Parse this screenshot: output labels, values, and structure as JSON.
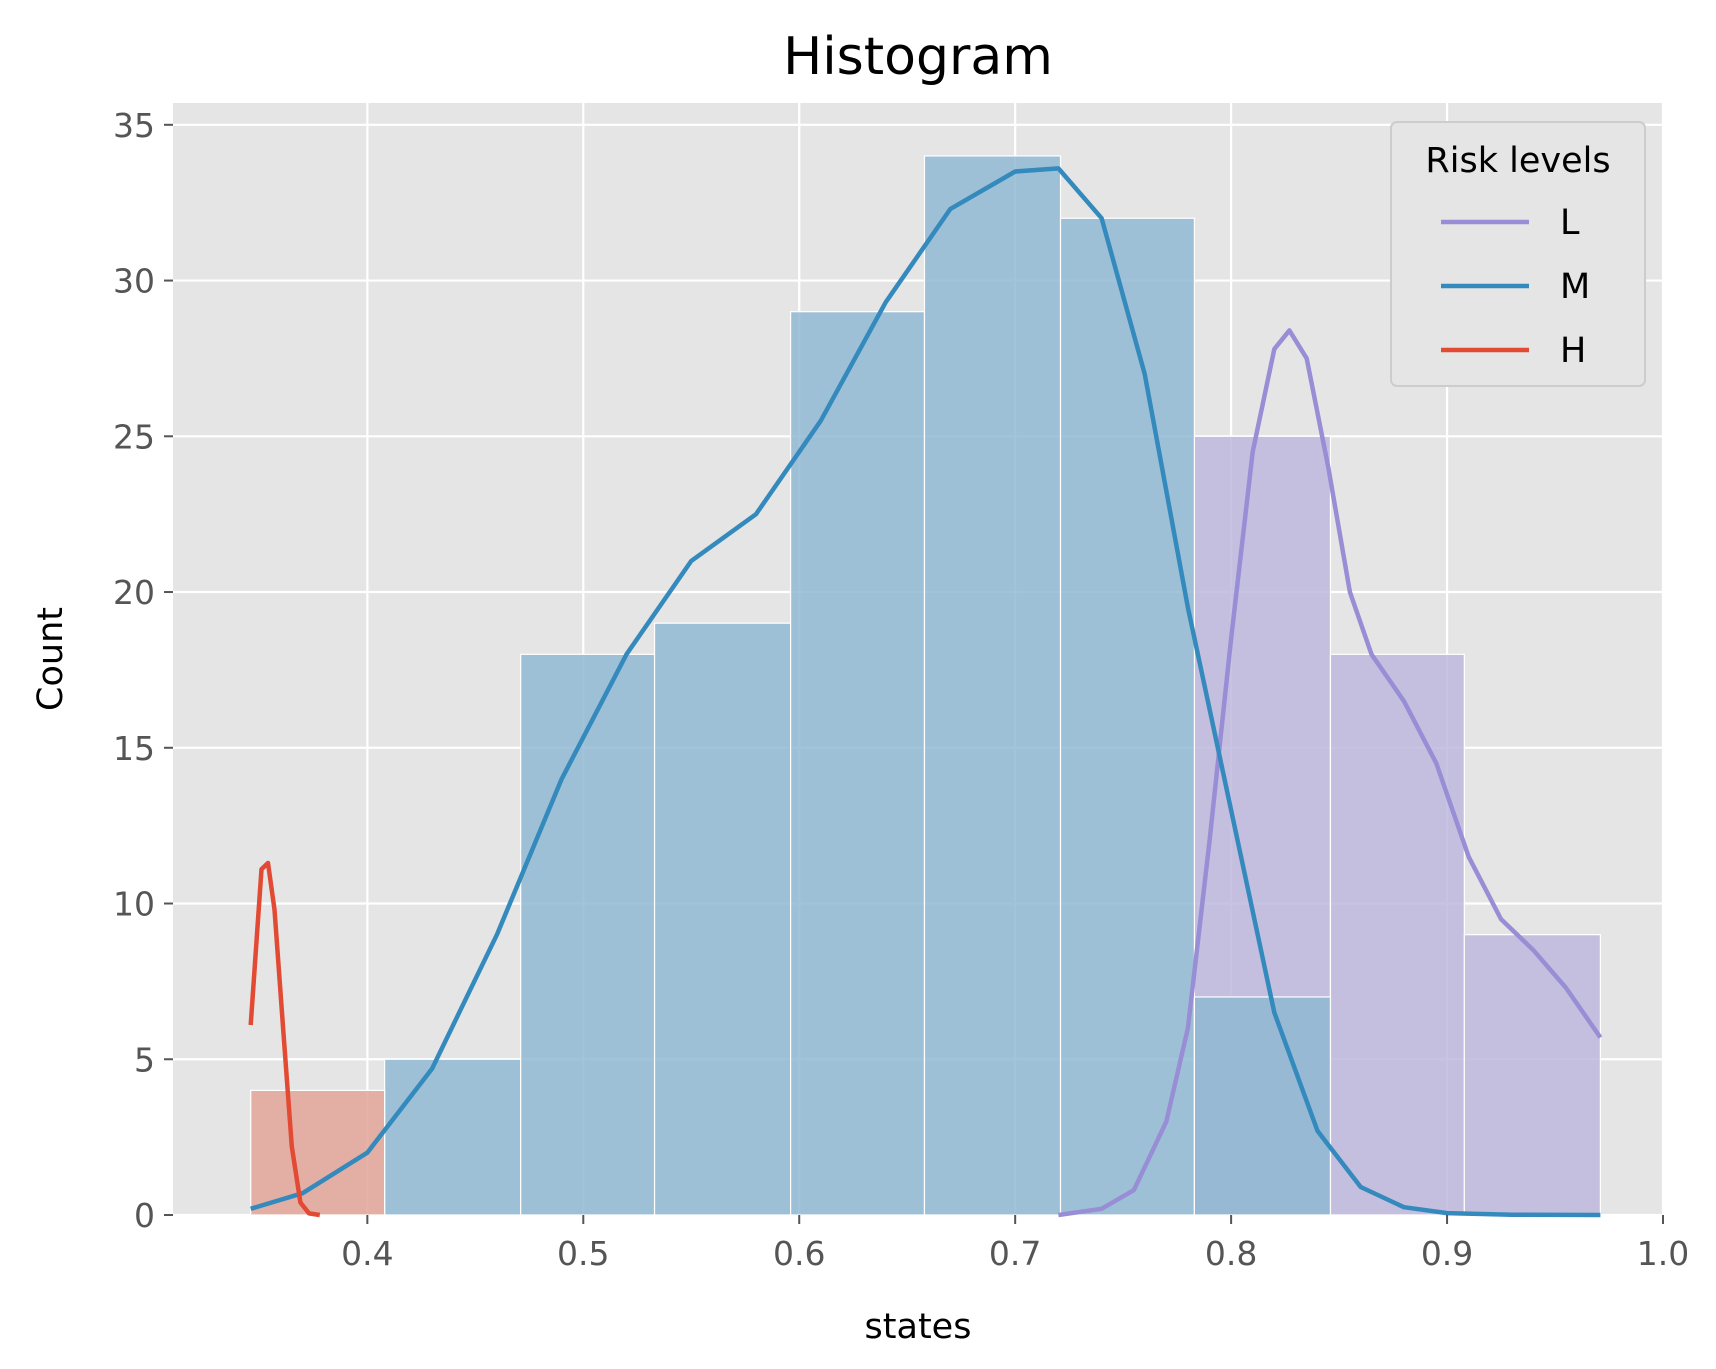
{
  "chart_data": {
    "type": "histogram",
    "title": "Histogram",
    "xlabel": "states",
    "ylabel": "Count",
    "xlim": [
      0.31,
      1.0
    ],
    "ylim": [
      0,
      35.7
    ],
    "x_ticks": [
      0.4,
      0.5,
      0.6,
      0.7,
      0.8,
      0.9,
      1.0
    ],
    "x_tick_labels": [
      "0.4",
      "0.5",
      "0.6",
      "0.7",
      "0.8",
      "0.9",
      "1.0"
    ],
    "y_ticks": [
      0,
      5,
      10,
      15,
      20,
      25,
      30,
      35
    ],
    "y_tick_labels": [
      "0",
      "5",
      "10",
      "15",
      "20",
      "25",
      "30",
      "35"
    ],
    "grid": true,
    "background": "#e5e5e5",
    "bin_edges": [
      0.346,
      0.408,
      0.471,
      0.533,
      0.596,
      0.658,
      0.721,
      0.783,
      0.846,
      0.908,
      0.971
    ],
    "legend": {
      "title": "Risk levels",
      "placement": "top-right",
      "entries": [
        "L",
        "M",
        "H"
      ]
    },
    "series": [
      {
        "name": "L",
        "color": "#988ed5",
        "bar_color": "#bcb6dd",
        "counts": [
          0,
          0,
          0,
          0,
          0,
          0,
          0,
          25,
          18,
          9
        ],
        "kde": [
          [
            0.72,
            0
          ],
          [
            0.74,
            0.2
          ],
          [
            0.755,
            0.8
          ],
          [
            0.77,
            3
          ],
          [
            0.78,
            6
          ],
          [
            0.79,
            12
          ],
          [
            0.8,
            18.5
          ],
          [
            0.81,
            24.5
          ],
          [
            0.82,
            27.8
          ],
          [
            0.827,
            28.4
          ],
          [
            0.835,
            27.5
          ],
          [
            0.845,
            24
          ],
          [
            0.855,
            20
          ],
          [
            0.865,
            18
          ],
          [
            0.88,
            16.5
          ],
          [
            0.895,
            14.5
          ],
          [
            0.91,
            11.5
          ],
          [
            0.925,
            9.5
          ],
          [
            0.94,
            8.5
          ],
          [
            0.955,
            7.3
          ],
          [
            0.971,
            5.7
          ]
        ]
      },
      {
        "name": "M",
        "color": "#348abd",
        "bar_color": "#8db7d2",
        "counts": [
          0,
          5,
          18,
          19,
          29,
          34,
          32,
          7,
          0,
          0
        ],
        "kde": [
          [
            0.346,
            0.2
          ],
          [
            0.37,
            0.7
          ],
          [
            0.4,
            2
          ],
          [
            0.43,
            4.7
          ],
          [
            0.46,
            9
          ],
          [
            0.49,
            14
          ],
          [
            0.52,
            18
          ],
          [
            0.55,
            21
          ],
          [
            0.58,
            22.5
          ],
          [
            0.61,
            25.5
          ],
          [
            0.64,
            29.3
          ],
          [
            0.67,
            32.3
          ],
          [
            0.7,
            33.5
          ],
          [
            0.72,
            33.6
          ],
          [
            0.74,
            32
          ],
          [
            0.76,
            27
          ],
          [
            0.78,
            19.5
          ],
          [
            0.8,
            13
          ],
          [
            0.82,
            6.5
          ],
          [
            0.84,
            2.7
          ],
          [
            0.86,
            0.9
          ],
          [
            0.88,
            0.25
          ],
          [
            0.9,
            0.06
          ],
          [
            0.93,
            0.01
          ],
          [
            0.971,
            0
          ]
        ]
      },
      {
        "name": "H",
        "color": "#e24a33",
        "bar_color": "#e2a296",
        "counts": [
          4,
          0,
          0,
          0,
          0,
          0,
          0,
          0,
          0,
          0
        ],
        "kde": [
          [
            0.346,
            6.1
          ],
          [
            0.351,
            11.1
          ],
          [
            0.354,
            11.3
          ],
          [
            0.357,
            9.8
          ],
          [
            0.361,
            6
          ],
          [
            0.365,
            2.2
          ],
          [
            0.369,
            0.4
          ],
          [
            0.373,
            0.05
          ],
          [
            0.378,
            0
          ]
        ]
      }
    ]
  }
}
